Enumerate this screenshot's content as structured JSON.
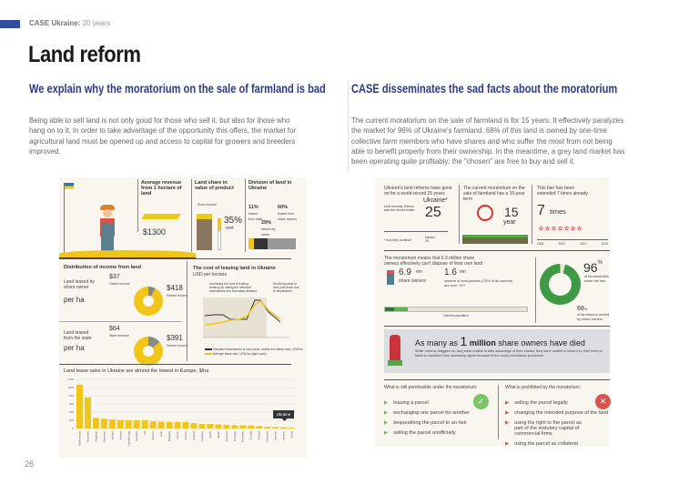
{
  "header": {
    "org": "CASE Ukraine:",
    "suffix": "20 years",
    "title": "Land reform",
    "page_number": "26"
  },
  "left": {
    "heading": "We explain why the moratorium on the sale of farmland is bad",
    "paragraph": "Being able to sell land is not only good for those who sell it, but also for those who hang on to it. In order to take advantage of the opportunity this offers, the market for agricultural land must be opened up and access to capital for growers and breeders improved."
  },
  "right": {
    "heading": "CASE disseminates the sad facts about the moratorium",
    "paragraph": "The current moratorium on the sale of farmland is for 15 years. It effectively paralyzes the market for 96% of Ukraine's farmland. 68% of this land is owned by one-time collective farm members who have shares and who suffer the most from not being able to benefit properly from their ownership. In the meantime, a grey land market has been operating quite profitably: the \"chosen\" are free to buy and sell it."
  },
  "info_left": {
    "avg_revenue": {
      "label": "Average revenue from 1 hectare of land",
      "value": "$1300"
    },
    "land_share": {
      "label": "Land share in value of product",
      "sublabel": "Sown income",
      "value": "35%",
      "unit": "rent"
    },
    "division": {
      "label": "Division of land in Ukraine",
      "items": [
        {
          "pct": "11%",
          "text": "leased from state",
          "color": "#f2c51a"
        },
        {
          "pct": "29%",
          "text": "farmed by owner",
          "color": "#333333"
        },
        {
          "pct": "60%",
          "text": "leased from share owners",
          "color": "#999999"
        }
      ]
    },
    "distribution": {
      "label": "Distribution of income from land",
      "rows": [
        {
          "label": "Land leased by share owner",
          "per": "per ha",
          "small": "$37",
          "small_note": "Owner income",
          "large": "$418",
          "large_note": "Farmer income"
        },
        {
          "label": "Land leased from the state",
          "per": "per ha",
          "small": "$64",
          "small_note": "State revenue",
          "large": "$391",
          "large_note": "Farmer income"
        }
      ]
    },
    "leasing": {
      "title": "The cost of leasing land in Ukraine",
      "subtitle": "USD per hectare",
      "note1": "Increasing the cost of leasing tenancy by raising the standard assessment and increased demand",
      "note2": "Declining value of land puts down due to devaluation",
      "legend": [
        "Standard assessment of land value, arable and fallow land, USD/ha",
        "Average lease rate, USD/ha (right scale)"
      ]
    },
    "chart_data": {
      "type": "bar",
      "title": "Land lease rates in Ukraine are almost the lowest in Europe, $/ha",
      "categories": [
        "Netherlands",
        "Denmark",
        "Belgium",
        "Germany",
        "Ireland",
        "Austria",
        "Luxembourg",
        "Sweden",
        "UK",
        "Greece",
        "Italy",
        "Bulgaria",
        "Czech",
        "France",
        "Finland",
        "Hungary",
        "Spain",
        "Malta",
        "Slovenia",
        "Portugal",
        "Romania",
        "Croatia",
        "Poland",
        "Lithuania",
        "Estonia",
        "Ukraine",
        "Latvia"
      ],
      "values": [
        1070,
        760,
        260,
        240,
        220,
        210,
        200,
        200,
        200,
        180,
        170,
        160,
        160,
        160,
        130,
        110,
        110,
        100,
        90,
        80,
        75,
        70,
        60,
        40,
        40,
        30,
        25
      ],
      "yticks": [
        "0",
        "200",
        "400",
        "600",
        "800",
        "1000",
        "1 200"
      ],
      "ylim": [
        0,
        1200
      ],
      "highlight": "Ukraine",
      "color": "#f2c51a"
    }
  },
  "info_right": {
    "reforms": {
      "label": "Ukraine's land reforms have gone on for a world-record 25 years",
      "note": "Until recently, Mexico was the record holder",
      "country": "Ukraine*",
      "value": "25",
      "mexico": "Mexico 25",
      "footnote": "* And they continue"
    },
    "term": {
      "label": "The current moratorium on the sale of farmland has a 15-year term",
      "value": "15",
      "unit": "year"
    },
    "extended": {
      "label": "This ban has been extended 7 times already",
      "value": "7",
      "unit": "times",
      "years": [
        "2008",
        "2002",
        "2010",
        "2015"
      ]
    },
    "owners": {
      "label": "The moratorium means that 6.9 million share owners effectively can't dispose of their own land",
      "v1": "6.9",
      "u1": "mn",
      "t1": "share owners",
      "v2": "1.6",
      "u2": "mn",
      "t2": "owners of land parcels (23% of all owners) are over 70**",
      "bar_label": "General population"
    },
    "share": {
      "v1": "96",
      "t1": "of farmland falls under the ban",
      "v2": "68",
      "t2": "of farmland is owned by share owners",
      "pct": "%"
    },
    "died": {
      "prefix": "As many as",
      "num": "1",
      "bold": "million",
      "suffix": "share owners have died",
      "text": "While reforms dragged on, they were unable to take advantage of their shares: they were unable to leave it to their heirs or failed to establish their ownership rights because of the costly inheritance procedure."
    },
    "permitted": {
      "title": "What is still permissible under the moratorium:",
      "items": [
        "leasing a parcel",
        "exchanging one parcel for another",
        "bequeathing the parcel to an heir",
        "selling the parcel unofficially"
      ]
    },
    "prohibited": {
      "title": "What is prohibited by the moratorium:",
      "items": [
        "selling the parcel legally",
        "changing the intended purpose of the land",
        "using the right to the parcel as part of the statutory capital of commercial firms",
        "using the parcel as collateral"
      ]
    }
  }
}
